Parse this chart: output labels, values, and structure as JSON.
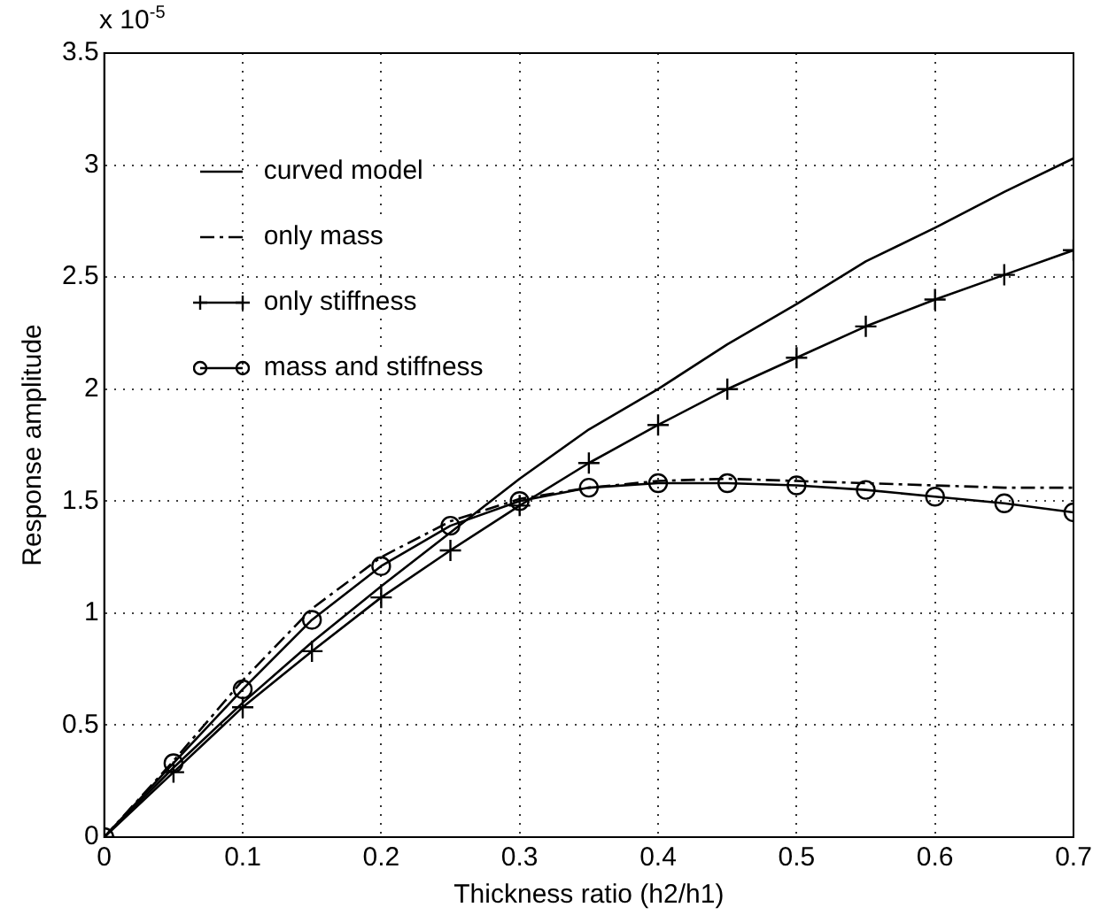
{
  "chart_data": {
    "type": "line",
    "xlabel": "Thickness ratio (h2/h1)",
    "ylabel": "Response amplitude",
    "annotations": [
      "x 10$^{-5}$"
    ],
    "x": [
      0,
      0.05,
      0.1,
      0.15,
      0.2,
      0.25,
      0.3,
      0.35,
      0.4,
      0.45,
      0.5,
      0.55,
      0.6,
      0.65,
      0.7
    ],
    "series": [
      {
        "name": "curved model",
        "color": "#000000",
        "marker": "none",
        "line_style": "solid",
        "values": [
          0,
          0.31,
          0.6,
          0.87,
          1.12,
          1.36,
          1.6,
          1.82,
          2.0,
          2.2,
          2.38,
          2.57,
          2.72,
          2.88,
          3.03
        ]
      },
      {
        "name": "only mass",
        "color": "#000000",
        "marker": "none",
        "line_style": "dashdot",
        "values": [
          0,
          0.34,
          0.7,
          1.02,
          1.25,
          1.41,
          1.51,
          1.56,
          1.59,
          1.6,
          1.59,
          1.58,
          1.57,
          1.56,
          1.56
        ]
      },
      {
        "name": "only stiffness",
        "color": "#000000",
        "marker": "cross",
        "line_style": "solid",
        "values": [
          0,
          0.29,
          0.58,
          0.83,
          1.07,
          1.28,
          1.48,
          1.67,
          1.84,
          2.0,
          2.14,
          2.28,
          2.4,
          2.51,
          2.62
        ]
      },
      {
        "name": "mass and stiffness",
        "color": "#000000",
        "marker": "circle",
        "line_style": "solid",
        "values": [
          0,
          0.33,
          0.66,
          0.97,
          1.21,
          1.39,
          1.5,
          1.56,
          1.58,
          1.58,
          1.57,
          1.55,
          1.52,
          1.49,
          1.45
        ]
      }
    ],
    "xlim": [
      0,
      0.7
    ],
    "xticks": [
      0,
      0.1,
      0.2,
      0.3,
      0.4,
      0.5,
      0.6,
      0.7
    ],
    "ylim": [
      0,
      3.5
    ],
    "yticks": [
      0,
      0.5,
      1,
      1.5,
      2,
      2.5,
      3,
      3.5
    ],
    "grid": true,
    "legend": "top left"
  }
}
